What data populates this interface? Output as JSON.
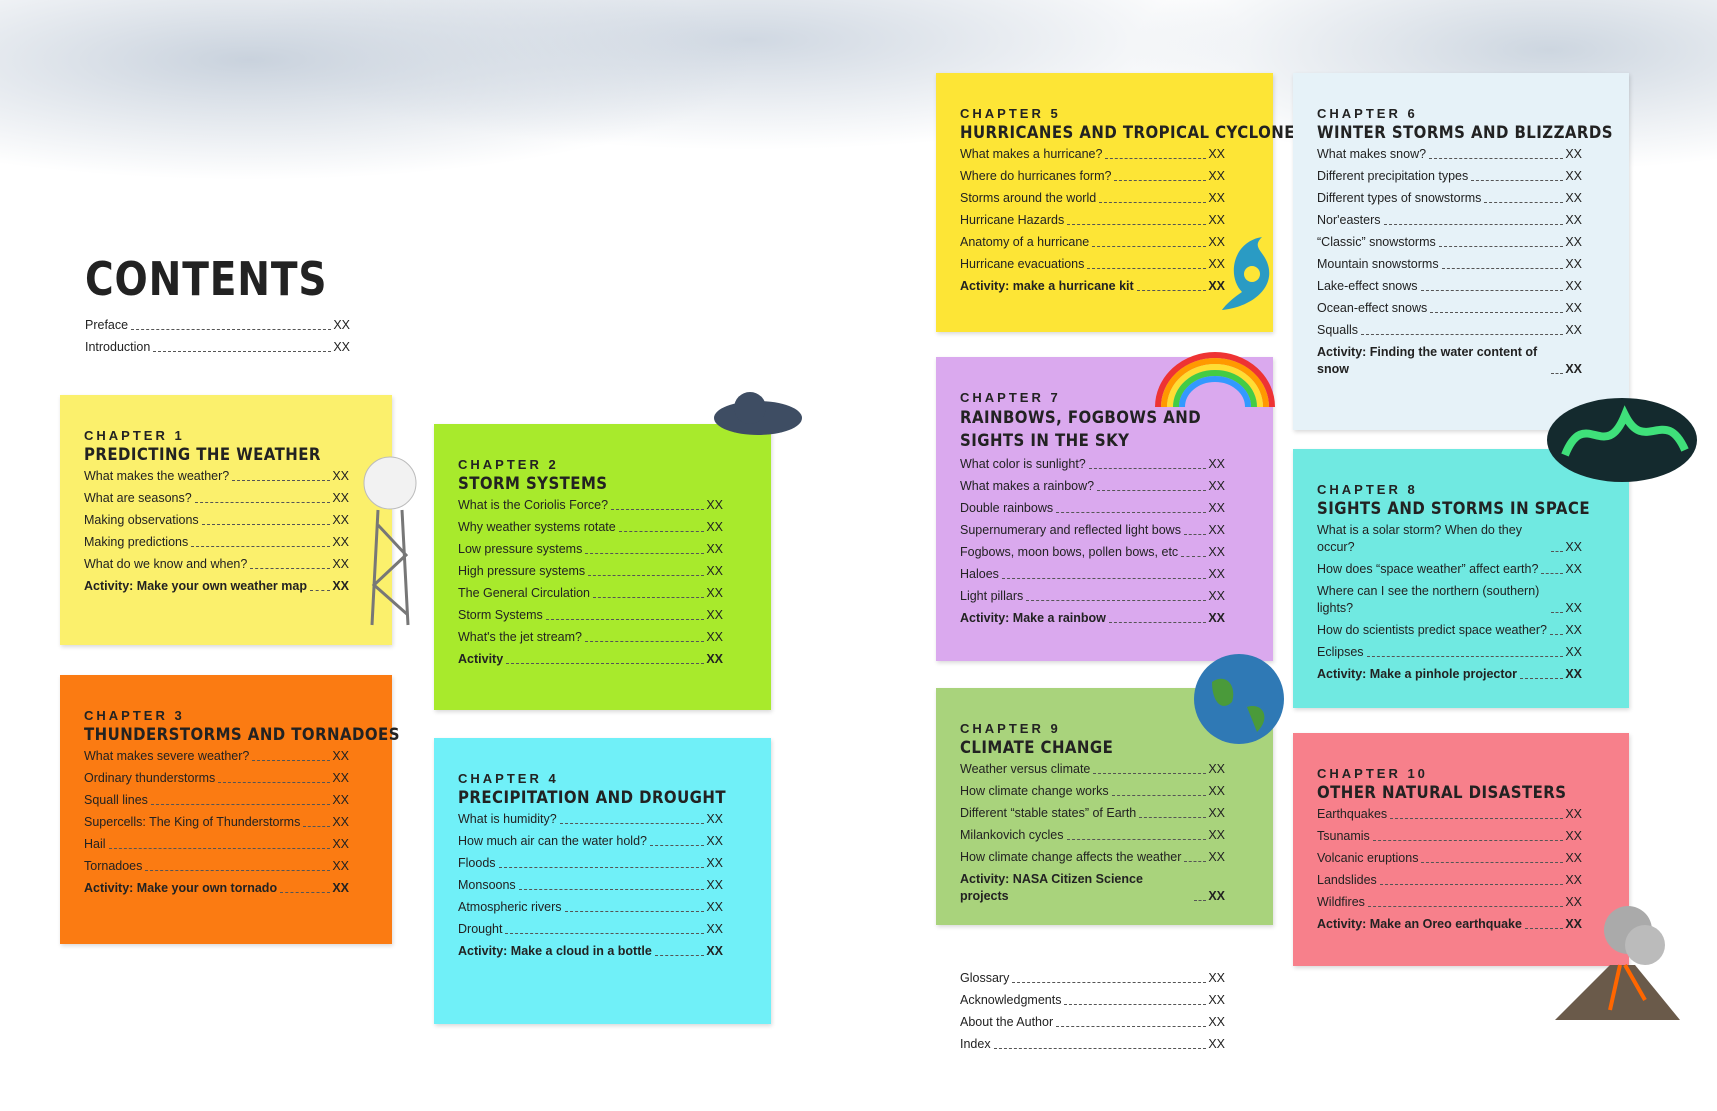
{
  "title": "CONTENTS",
  "front_matter": [
    {
      "label": "Preface",
      "page": "XX"
    },
    {
      "label": "Introduction",
      "page": "XX"
    }
  ],
  "chapters": [
    {
      "number": "CHAPTER 1",
      "title": "PREDICTING THE WEATHER",
      "entries": [
        {
          "label": "What makes the weather?",
          "page": "XX"
        },
        {
          "label": "What are seasons?",
          "page": "XX"
        },
        {
          "label": "Making observations",
          "page": "XX"
        },
        {
          "label": "Making predictions",
          "page": "XX"
        },
        {
          "label": "What do we know and when?",
          "page": "XX"
        },
        {
          "label": "Activity: Make your own weather map",
          "page": "XX"
        }
      ]
    },
    {
      "number": "CHAPTER 2",
      "title": "STORM SYSTEMS",
      "entries": [
        {
          "label": "What is the Coriolis Force?",
          "page": "XX"
        },
        {
          "label": "Why weather systems rotate",
          "page": "XX"
        },
        {
          "label": "Low pressure systems",
          "page": "XX"
        },
        {
          "label": "High pressure systems",
          "page": "XX"
        },
        {
          "label": "The General Circulation",
          "page": "XX"
        },
        {
          "label": "Storm Systems",
          "page": "XX"
        },
        {
          "label": "What's the jet stream?",
          "page": "XX"
        },
        {
          "label": "Activity",
          "page": "XX"
        }
      ]
    },
    {
      "number": "CHAPTER 3",
      "title": "THUNDERSTORMS AND TORNADOES",
      "entries": [
        {
          "label": "What makes severe weather?",
          "page": "XX"
        },
        {
          "label": "Ordinary thunderstorms",
          "page": "XX"
        },
        {
          "label": "Squall lines",
          "page": "XX"
        },
        {
          "label": "Supercells: The King of Thunderstorms",
          "page": "XX"
        },
        {
          "label": "Hail",
          "page": "XX"
        },
        {
          "label": "Tornadoes",
          "page": "XX"
        },
        {
          "label": "Activity: Make your own tornado",
          "page": "XX"
        }
      ]
    },
    {
      "number": "CHAPTER 4",
      "title": "PRECIPITATION AND DROUGHT",
      "entries": [
        {
          "label": "What is humidity?",
          "page": "XX"
        },
        {
          "label": "How much air can the water hold?",
          "page": "XX"
        },
        {
          "label": "Floods",
          "page": "XX"
        },
        {
          "label": "Monsoons",
          "page": "XX"
        },
        {
          "label": "Atmospheric rivers",
          "page": "XX"
        },
        {
          "label": "Drought",
          "page": "XX"
        },
        {
          "label": "Activity: Make a cloud in a bottle",
          "page": "XX"
        }
      ]
    },
    {
      "number": "CHAPTER 5",
      "title": "HURRICANES AND TROPICAL CYCLONES",
      "entries": [
        {
          "label": "What makes a hurricane?",
          "page": "XX"
        },
        {
          "label": "Where do hurricanes form?",
          "page": "XX"
        },
        {
          "label": "Storms around the world",
          "page": "XX"
        },
        {
          "label": "Hurricane Hazards",
          "page": "XX"
        },
        {
          "label": "Anatomy of a hurricane",
          "page": "XX"
        },
        {
          "label": "Hurricane evacuations",
          "page": "XX"
        },
        {
          "label": "Activity: make a hurricane kit",
          "page": "XX"
        }
      ]
    },
    {
      "number": "CHAPTER 6",
      "title": "WINTER STORMS AND BLIZZARDS",
      "entries": [
        {
          "label": "What makes snow?",
          "page": "XX"
        },
        {
          "label": "Different precipitation types",
          "page": "XX"
        },
        {
          "label": "Different types of snowstorms",
          "page": "XX"
        },
        {
          "label": "Nor'easters",
          "page": "XX"
        },
        {
          "label": "“Classic” snowstorms",
          "page": "XX"
        },
        {
          "label": "Mountain snowstorms",
          "page": "XX"
        },
        {
          "label": "Lake-effect snows",
          "page": "XX"
        },
        {
          "label": "Ocean-effect snows",
          "page": "XX"
        },
        {
          "label": "Squalls",
          "page": "XX"
        },
        {
          "label": "Activity: Finding the water content of snow",
          "page": "XX"
        }
      ]
    },
    {
      "number": "CHAPTER 7",
      "title": "RAINBOWS, FOGBOWS AND SIGHTS IN THE SKY",
      "entries": [
        {
          "label": "What color is sunlight?",
          "page": "XX"
        },
        {
          "label": "What makes a rainbow?",
          "page": "XX"
        },
        {
          "label": "Double rainbows",
          "page": "XX"
        },
        {
          "label": "Supernumerary and reflected light bows",
          "page": "XX"
        },
        {
          "label": "Fogbows, moon bows, pollen bows, etc",
          "page": "XX"
        },
        {
          "label": "Haloes",
          "page": "XX"
        },
        {
          "label": "Light pillars",
          "page": "XX"
        },
        {
          "label": "Activity: Make a rainbow",
          "page": "XX"
        }
      ]
    },
    {
      "number": "CHAPTER 8",
      "title": "SIGHTS AND STORMS IN SPACE",
      "entries": [
        {
          "label": "What is a solar storm? When do they occur?",
          "page": "XX"
        },
        {
          "label": "How does “space weather” affect earth?",
          "page": "XX"
        },
        {
          "label": "Where can I see the northern (southern) lights?",
          "page": "XX"
        },
        {
          "label": "How do scientists predict space weather?",
          "page": "XX"
        },
        {
          "label": "Eclipses",
          "page": "XX"
        },
        {
          "label": "Activity: Make a pinhole projector",
          "page": "XX"
        }
      ]
    },
    {
      "number": "CHAPTER 9",
      "title": "CLIMATE CHANGE",
      "entries": [
        {
          "label": "Weather versus climate",
          "page": "XX"
        },
        {
          "label": "How climate change works",
          "page": "XX"
        },
        {
          "label": "Different “stable states” of Earth",
          "page": "XX"
        },
        {
          "label": "Milankovich cycles",
          "page": "XX"
        },
        {
          "label": "How climate change affects the weather",
          "page": "XX"
        },
        {
          "label": "Activity: NASA Citizen Science projects",
          "page": "XX"
        }
      ]
    },
    {
      "number": "CHAPTER 10",
      "title": "OTHER NATURAL DISASTERS",
      "entries": [
        {
          "label": "Earthquakes",
          "page": "XX"
        },
        {
          "label": "Tsunamis",
          "page": "XX"
        },
        {
          "label": "Volcanic eruptions",
          "page": "XX"
        },
        {
          "label": "Landslides",
          "page": "XX"
        },
        {
          "label": "Wildfires",
          "page": "XX"
        },
        {
          "label": "Activity: Make an Oreo earthquake",
          "page": "XX"
        }
      ]
    }
  ],
  "back_matter": [
    {
      "label": "Glossary",
      "page": "XX"
    },
    {
      "label": "Acknowledgments",
      "page": "XX"
    },
    {
      "label": "About the Author",
      "page": "XX"
    },
    {
      "label": "Index",
      "page": "XX"
    }
  ]
}
